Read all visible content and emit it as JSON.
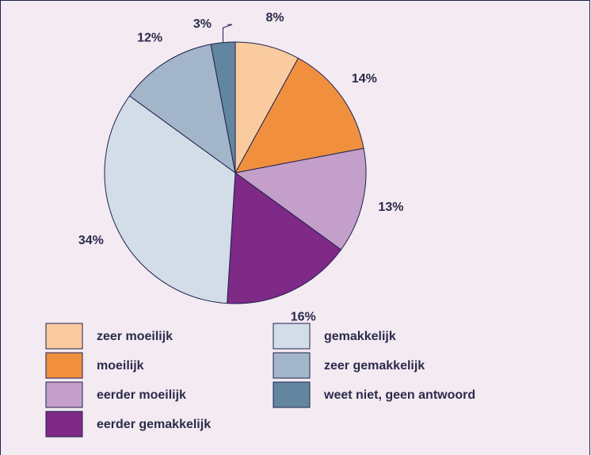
{
  "chart_data": {
    "type": "pie",
    "categories": [
      "zeer moeilijk",
      "moeilijk",
      "eerder moeilijk",
      "eerder gemakkelijk",
      "gemakkelijk",
      "zeer gemakkelijk",
      "weet niet, geen antwoord"
    ],
    "values": [
      8,
      14,
      13,
      16,
      34,
      12,
      3
    ],
    "value_labels": [
      "8%",
      "14%",
      "13%",
      "16%",
      "34%",
      "12%",
      "3%"
    ],
    "colors": [
      "#fbcba0",
      "#f0903f",
      "#c49fc9",
      "#7f2a86",
      "#d3dde8",
      "#a3b5c9",
      "#6386a0"
    ]
  }
}
